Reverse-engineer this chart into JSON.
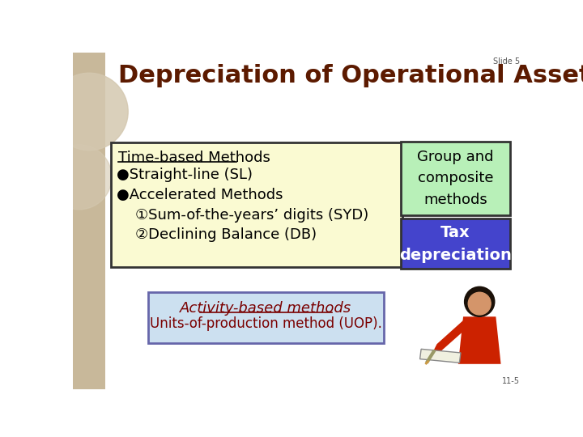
{
  "title": "Depreciation of Operational Assets",
  "slide_label": "Slide 5",
  "slide_number": "11-5",
  "bg_color": "#ffffff",
  "title_color": "#5c1a00",
  "title_fontsize": 22,
  "left_box": {
    "heading": "Time-based Methods",
    "line1": "●Straight-line (SL)",
    "line2": "●Accelerated Methods",
    "line3": "    ①Sum-of-the-years’ digits (SYD)",
    "line4": "    ②Declining Balance (DB)",
    "bg": "#fafad2",
    "border": "#333333",
    "text_color": "#000000",
    "fontsize": 12
  },
  "group_box": {
    "text": "Group and\ncomposite\nmethods",
    "bg": "#b8f0b8",
    "border": "#333333",
    "text_color": "#000000",
    "fontsize": 13
  },
  "tax_box": {
    "text": "Tax\ndepreciation",
    "bg": "#4444cc",
    "border": "#333333",
    "text_color": "#ffffff",
    "fontsize": 14
  },
  "activity_box": {
    "heading": "Activity-based methods",
    "subtext": "Units-of-production method (UOP).",
    "bg": "#cce0f0",
    "border": "#6666aa",
    "text_color": "#7a0000",
    "fontsize": 13
  },
  "left_bar_color": "#c8b89a",
  "circle_color": "#d4c8b0"
}
